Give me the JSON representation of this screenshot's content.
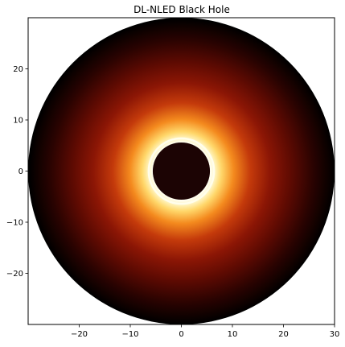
{
  "chart_data": {
    "type": "heatmap",
    "title": "DL-NLED Black Hole",
    "xlabel": "",
    "ylabel": "",
    "xlim": [
      -30,
      30
    ],
    "ylim": [
      -30,
      30
    ],
    "x_ticks": [
      -20,
      -10,
      0,
      10,
      20,
      30
    ],
    "y_ticks": [
      -20,
      -10,
      0,
      10,
      20
    ],
    "x_tick_labels": [
      "−20",
      "−10",
      "0",
      "10",
      "20",
      "30"
    ],
    "y_tick_labels": [
      "−20",
      "−10",
      "0",
      "10",
      "20"
    ],
    "grid": false,
    "legend": "none",
    "colormap": "afmhot",
    "disk_outer_radius": 30,
    "shadow_radius": 5.6,
    "photon_ring_radius": 6.4,
    "intensity_profile": [
      {
        "r": 0,
        "intensity": 0.04
      },
      {
        "r": 5.6,
        "intensity": 0.05
      },
      {
        "r": 5.9,
        "intensity": 0.98
      },
      {
        "r": 6.4,
        "intensity": 1.0
      },
      {
        "r": 8,
        "intensity": 0.88
      },
      {
        "r": 10,
        "intensity": 0.72
      },
      {
        "r": 13,
        "intensity": 0.55
      },
      {
        "r": 17,
        "intensity": 0.4
      },
      {
        "r": 22,
        "intensity": 0.22
      },
      {
        "r": 26,
        "intensity": 0.1
      },
      {
        "r": 30,
        "intensity": 0.0
      }
    ],
    "colors": {
      "shadow": "#1c0404",
      "ring_white": "#fffef0",
      "yellow": "#ffd76a",
      "orange": "#f48a1e",
      "red": "#b22a0a",
      "dark_red": "#5c0a02",
      "black": "#000000"
    }
  }
}
